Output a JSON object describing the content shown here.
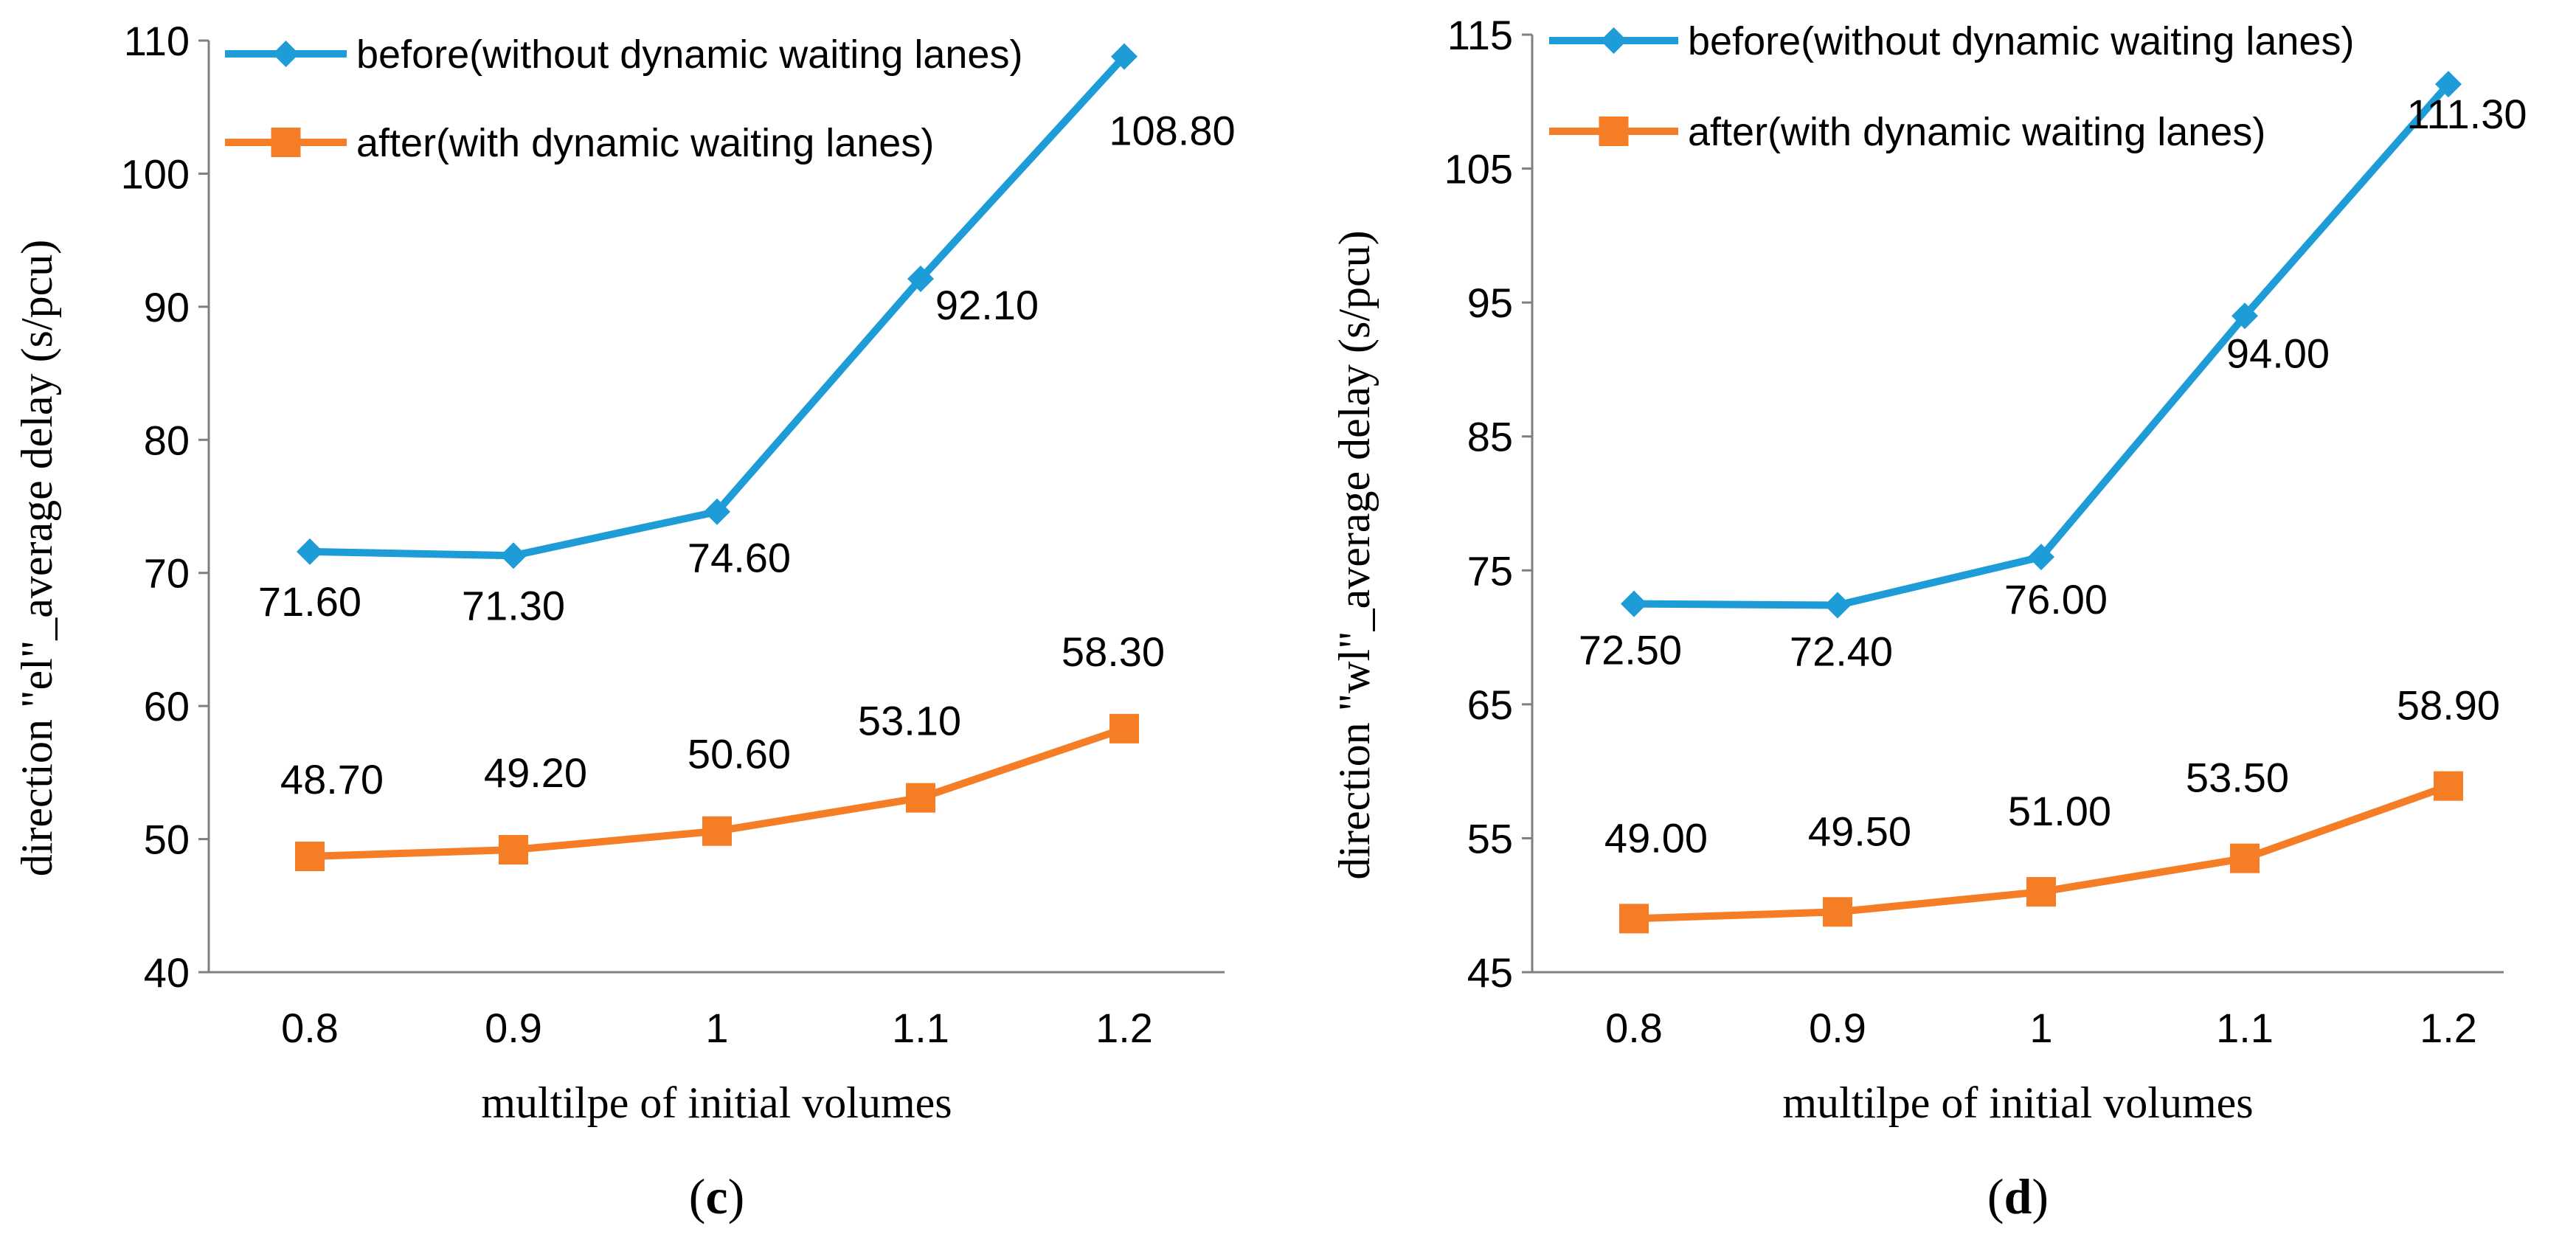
{
  "chart_data": [
    {
      "type": "line",
      "panel_label": "c",
      "title": "",
      "xlabel": "multilpe of initial volumes",
      "ylabel": "direction \"el\"_average delay (s/pcu)",
      "categories": [
        "0.8",
        "0.9",
        "1",
        "1.1",
        "1.2"
      ],
      "ylim": [
        40,
        110
      ],
      "yticks": [
        40,
        50,
        60,
        70,
        80,
        90,
        100,
        110
      ],
      "legend_position": "top-left",
      "series": [
        {
          "name": "before(without dynamic waiting lanes)",
          "color": "#1E9CD7",
          "marker": "diamond",
          "values": [
            71.6,
            71.3,
            74.6,
            92.1,
            108.8
          ],
          "labels": [
            "71.60",
            "71.30",
            "74.60",
            "92.10",
            "108.80"
          ]
        },
        {
          "name": "after(with dynamic waiting lanes)",
          "color": "#F47D26",
          "marker": "square",
          "values": [
            48.7,
            49.2,
            50.6,
            53.1,
            58.3
          ],
          "labels": [
            "48.70",
            "49.20",
            "50.60",
            "53.10",
            "58.30"
          ]
        }
      ]
    },
    {
      "type": "line",
      "panel_label": "d",
      "title": "",
      "xlabel": "multilpe of initial volumes",
      "ylabel": "direction \"wl\"_average delay (s/pcu)",
      "categories": [
        "0.8",
        "0.9",
        "1",
        "1.1",
        "1.2"
      ],
      "ylim": [
        45,
        115
      ],
      "yticks": [
        45,
        55,
        65,
        75,
        85,
        95,
        105,
        115
      ],
      "legend_position": "top-left",
      "series": [
        {
          "name": "before(without dynamic waiting lanes)",
          "color": "#1E9CD7",
          "marker": "diamond",
          "values": [
            72.5,
            72.4,
            76.0,
            94.0,
            111.3
          ],
          "labels": [
            "72.50",
            "72.40",
            "76.00",
            "94.00",
            "111.30"
          ]
        },
        {
          "name": "after(with dynamic waiting lanes)",
          "color": "#F47D26",
          "marker": "square",
          "values": [
            49.0,
            49.5,
            51.0,
            53.5,
            58.9
          ],
          "labels": [
            "49.00",
            "49.50",
            "51.00",
            "53.50",
            "58.90"
          ]
        }
      ]
    }
  ]
}
